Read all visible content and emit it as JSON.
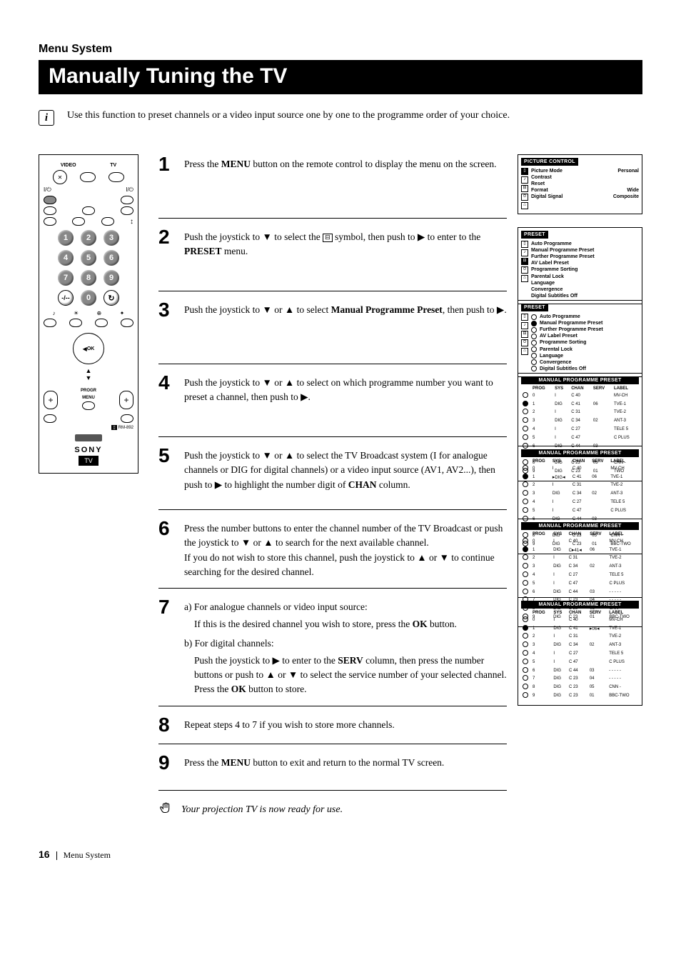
{
  "header": {
    "section": "Menu System",
    "title": "Manually Tuning the TV",
    "intro": "Use this function to preset channels or a video input source one by one to the programme order of your choice."
  },
  "remote": {
    "toprow": {
      "left": "VIDEO",
      "right": "TV"
    },
    "numbers": [
      "1",
      "2",
      "3",
      "4",
      "5",
      "6",
      "7",
      "8",
      "9",
      "0"
    ],
    "ok": "OK",
    "menu": "MENU",
    "progr": "PROGR",
    "rm": "RM-892",
    "brand": "SONY",
    "badge": "TV"
  },
  "steps": {
    "s1": {
      "num": "1",
      "pre": "Press the ",
      "bold1": "MENU",
      "post": " button on the remote control to display the menu on the screen."
    },
    "s2": {
      "num": "2",
      "pre": "Push the joystick to ▼ to select the ",
      "post": " symbol, then push to ▶ to enter to the ",
      "bold1": "PRESET",
      "post2": " menu."
    },
    "s3": {
      "num": "3",
      "pre": "Push the joystick to ▼ or ▲ to select ",
      "bold1": "Manual Programme Preset",
      "post": ", then push to ▶."
    },
    "s4": {
      "num": "4",
      "text": "Push the joystick to ▼ or ▲ to select on which programme number you want to preset a channel, then push to ▶."
    },
    "s5": {
      "num": "5",
      "pre": "Push the joystick to ▼ or ▲ to select the TV Broadcast system (I for analogue channels or DIG for digital channels) or a video input source (AV1, AV2...), then push to ▶ to highlight the number digit of ",
      "bold1": "CHAN",
      "post": " column."
    },
    "s6": {
      "num": "6",
      "text": "Press the number buttons to enter the channel number of the TV Broadcast or push the joystick to ▼ or ▲ to search for the next available channel.",
      "text2": "If you do not wish to store this channel, push the joystick to ▲ or ▼ to continue searching for the desired channel."
    },
    "s7": {
      "num": "7",
      "a_label": "a) For analogue channels or video input source:",
      "a_body_pre": "If this is the desired channel you wish to store, press the ",
      "a_body_bold": "OK",
      "a_body_post": " button.",
      "b_label": "b) For digital channels:",
      "b_body_pre": "Push the joystick to ▶ to enter to the ",
      "b_body_bold": "SERV",
      "b_body_mid": " column, then press the number buttons or push to ▲ or ▼ to select the service number of your selected channel.",
      "b_body_post": "Press the ",
      "b_body_bold2": "OK",
      "b_body_post2": " button to store."
    },
    "s8": {
      "num": "8",
      "text": "Repeat steps 4 to 7 if you wish to store more channels."
    },
    "s9": {
      "num": "9",
      "pre": "Press the ",
      "bold1": "MENU",
      "post": " button to exit and return to the normal TV screen."
    }
  },
  "finish": "Your projection TV is now ready for use.",
  "footer": {
    "page": "16",
    "section": "Menu System"
  },
  "osd": {
    "picture": {
      "title": "PICTURE  CONTROL",
      "rows": [
        {
          "l": "Picture Mode",
          "r": "Personal"
        },
        {
          "l": "Contrast",
          "r": ""
        },
        {
          "l": "Reset",
          "r": ""
        },
        {
          "l": "Format",
          "r": "Wide"
        },
        {
          "l": "Digital Signal",
          "r": "Composite"
        }
      ]
    },
    "preset": {
      "title": "PRESET",
      "items": [
        "Auto Programme",
        "Manual Programme Preset",
        "Further Programme Preset",
        "AV Label Preset",
        "Programme Sorting",
        "Parental Lock",
        "Language",
        "Convergence",
        "Digital Subtitles   Off"
      ]
    },
    "manual": {
      "title": "MANUAL PROGRAMME PRESET",
      "headers": [
        "PROG",
        "SYS",
        "CHAN",
        "SERV",
        "LABEL"
      ],
      "rows": [
        {
          "prog": "0",
          "sys": "I",
          "chan": "C 40",
          "serv": "",
          "label": "MV-CH",
          "fill": false
        },
        {
          "prog": "1",
          "sys": "DIG",
          "chan": "C 41",
          "serv": "06",
          "label": "TVE-1",
          "fill": true
        },
        {
          "prog": "2",
          "sys": "I",
          "chan": "C 31",
          "serv": "",
          "label": "TVE-2",
          "fill": false
        },
        {
          "prog": "3",
          "sys": "DIG",
          "chan": "C 34",
          "serv": "02",
          "label": "ANT-3",
          "fill": false
        },
        {
          "prog": "4",
          "sys": "I",
          "chan": "C 27",
          "serv": "",
          "label": "TELE 5",
          "fill": false
        },
        {
          "prog": "5",
          "sys": "I",
          "chan": "C 47",
          "serv": "",
          "label": "C PLUS",
          "fill": false
        },
        {
          "prog": "6",
          "sys": "DIG",
          "chan": "C 44",
          "serv": "03",
          "label": "- - - - -",
          "fill": false
        },
        {
          "prog": "7",
          "sys": "DIG",
          "chan": "C 23",
          "serv": "04",
          "label": "- - - - -",
          "fill": false
        },
        {
          "prog": "8",
          "sys": "DIG",
          "chan": "C 23",
          "serv": "05",
          "label": "CNN -",
          "fill": false
        },
        {
          "prog": "9",
          "sys": "DIG",
          "chan": "C 23",
          "serv": "01",
          "label": "TWO",
          "fill": false
        }
      ],
      "rows_alt_last": "BBC-TWO"
    }
  }
}
